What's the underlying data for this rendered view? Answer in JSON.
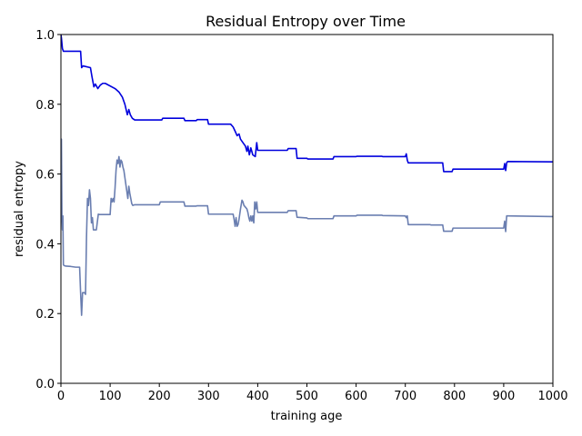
{
  "chart_data": {
    "type": "line",
    "title": "Residual Entropy over Time",
    "xlabel": "training age",
    "ylabel": "residual entropy",
    "xlim": [
      0,
      1000
    ],
    "ylim": [
      0.0,
      1.0
    ],
    "xticks": [
      0,
      100,
      200,
      300,
      400,
      500,
      600,
      700,
      800,
      900,
      1000
    ],
    "xtick_labels": [
      "0",
      "100",
      "200",
      "300",
      "400",
      "500",
      "600",
      "700",
      "800",
      "900",
      "1000"
    ],
    "yticks": [
      0.0,
      0.2,
      0.4,
      0.6,
      0.8,
      1.0
    ],
    "ytick_labels": [
      "0.0",
      "0.2",
      "0.4",
      "0.6",
      "0.8",
      "1.0"
    ],
    "grid": false,
    "legend": false,
    "series": [
      {
        "color": "#0000dd",
        "x": [
          0,
          1,
          3,
          5,
          40,
          42,
          45,
          60,
          63,
          67,
          70,
          75,
          80,
          85,
          90,
          110,
          118,
          125,
          130,
          135,
          138,
          141,
          145,
          150,
          205,
          207,
          250,
          252,
          275,
          277,
          298,
          300,
          345,
          350,
          355,
          358,
          362,
          365,
          370,
          375,
          378,
          380,
          383,
          386,
          390,
          395,
          398,
          400,
          460,
          462,
          478,
          480,
          500,
          502,
          553,
          555,
          600,
          602,
          652,
          654,
          700,
          702,
          704,
          706,
          750,
          752,
          776,
          778,
          795,
          797,
          900,
          902,
          904,
          906,
          908,
          1000
        ],
        "y": [
          1.0,
          0.99,
          0.96,
          0.952,
          0.952,
          0.905,
          0.91,
          0.905,
          0.88,
          0.85,
          0.858,
          0.845,
          0.855,
          0.86,
          0.86,
          0.845,
          0.835,
          0.82,
          0.8,
          0.77,
          0.785,
          0.77,
          0.76,
          0.755,
          0.755,
          0.76,
          0.76,
          0.753,
          0.753,
          0.756,
          0.756,
          0.743,
          0.743,
          0.735,
          0.72,
          0.71,
          0.715,
          0.7,
          0.69,
          0.68,
          0.665,
          0.68,
          0.655,
          0.675,
          0.655,
          0.65,
          0.69,
          0.668,
          0.668,
          0.673,
          0.673,
          0.645,
          0.645,
          0.643,
          0.643,
          0.65,
          0.65,
          0.651,
          0.651,
          0.65,
          0.65,
          0.658,
          0.64,
          0.632,
          0.632,
          0.632,
          0.632,
          0.607,
          0.607,
          0.614,
          0.614,
          0.63,
          0.61,
          0.632,
          0.636,
          0.635
        ]
      },
      {
        "color": "#6a7eb0",
        "x": [
          0,
          1,
          2,
          3,
          4,
          5,
          6,
          10,
          20,
          30,
          38,
          40,
          42,
          44,
          46,
          48,
          50,
          52,
          54,
          56,
          58,
          60,
          62,
          64,
          66,
          68,
          72,
          76,
          78,
          85,
          100,
          102,
          104,
          106,
          108,
          110,
          112,
          114,
          116,
          118,
          120,
          122,
          124,
          126,
          128,
          130,
          132,
          134,
          136,
          138,
          140,
          142,
          144,
          146,
          150,
          200,
          202,
          250,
          252,
          275,
          277,
          298,
          300,
          350,
          352,
          354,
          356,
          358,
          360,
          362,
          365,
          368,
          370,
          372,
          375,
          378,
          380,
          382,
          384,
          386,
          388,
          390,
          392,
          394,
          396,
          398,
          400,
          460,
          462,
          478,
          480,
          500,
          502,
          553,
          555,
          600,
          602,
          652,
          654,
          700,
          702,
          704,
          706,
          750,
          752,
          776,
          778,
          795,
          797,
          900,
          902,
          904,
          906,
          908,
          1000
        ],
        "y": [
          0.55,
          0.7,
          0.48,
          0.44,
          0.48,
          0.34,
          0.338,
          0.336,
          0.335,
          0.333,
          0.333,
          0.26,
          0.195,
          0.26,
          0.26,
          0.26,
          0.255,
          0.42,
          0.53,
          0.51,
          0.555,
          0.53,
          0.46,
          0.475,
          0.44,
          0.44,
          0.44,
          0.485,
          0.484,
          0.484,
          0.484,
          0.53,
          0.52,
          0.53,
          0.52,
          0.56,
          0.61,
          0.64,
          0.63,
          0.65,
          0.62,
          0.64,
          0.635,
          0.62,
          0.61,
          0.59,
          0.57,
          0.55,
          0.53,
          0.565,
          0.545,
          0.53,
          0.515,
          0.51,
          0.512,
          0.512,
          0.52,
          0.52,
          0.508,
          0.508,
          0.509,
          0.509,
          0.485,
          0.485,
          0.47,
          0.45,
          0.475,
          0.45,
          0.455,
          0.47,
          0.5,
          0.525,
          0.52,
          0.51,
          0.505,
          0.5,
          0.49,
          0.475,
          0.465,
          0.48,
          0.465,
          0.48,
          0.46,
          0.52,
          0.5,
          0.52,
          0.49,
          0.49,
          0.495,
          0.495,
          0.476,
          0.474,
          0.472,
          0.472,
          0.48,
          0.48,
          0.482,
          0.482,
          0.481,
          0.48,
          0.475,
          0.48,
          0.455,
          0.455,
          0.454,
          0.454,
          0.436,
          0.436,
          0.445,
          0.445,
          0.465,
          0.435,
          0.48,
          0.48,
          0.478
        ]
      }
    ]
  }
}
